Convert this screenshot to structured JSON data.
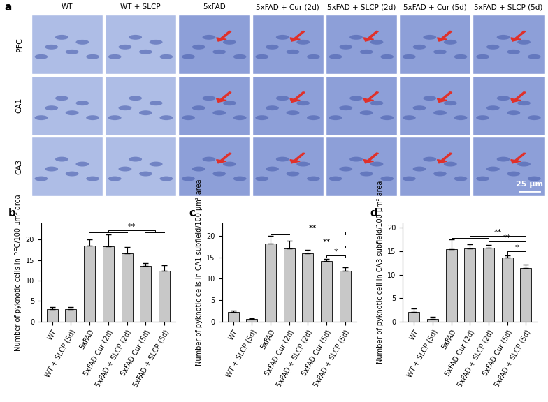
{
  "panel_a": {
    "label": "a",
    "columns": [
      "WT",
      "WT + SLCP",
      "5xFAD",
      "5xFAD + Cur (2d)",
      "5xFAD + SLCP (2d)",
      "5xFAD + Cur (5d)",
      "5xFAD + SLCP (5d)"
    ],
    "rows": [
      "PFC",
      "CA1",
      "CA3"
    ],
    "scale_bar": "25 μm"
  },
  "chart_data": [
    {
      "type": "bar",
      "title": "b",
      "y_label": "Number of pyknotic cells in PFC/100 μm² area",
      "categories": [
        "WT",
        "WT + SLCP (5d)",
        "5xFAD",
        "5xFAD Cur (2d)",
        "5xFAD + SLCP (2d)",
        "5xFAD Cur (5d)",
        "5xFAD + SLCP (5d)"
      ],
      "values": [
        3.0,
        3.0,
        18.5,
        18.3,
        16.7,
        13.5,
        12.3
      ],
      "errors": [
        0.5,
        0.6,
        1.5,
        3.0,
        1.4,
        0.7,
        1.4
      ],
      "color": "#c8c8c8",
      "ylim": [
        0,
        24
      ],
      "yticks": [
        0,
        5,
        10,
        15,
        20
      ],
      "annotations": [
        {
          "text": "**",
          "from": [
            "5xFAD",
            "5xFAD Cur (2d)",
            "5xFAD + SLCP (2d)"
          ],
          "to": [
            "5xFAD Cur (5d)",
            "5xFAD + SLCP (5d)"
          ]
        }
      ]
    },
    {
      "type": "bar",
      "title": "c",
      "y_label": "Number of pyknotic cells in CA1 subfield/100 μm² area",
      "categories": [
        "WT",
        "WT + SLCP (5d)",
        "5xFAD",
        "5xFAD Cur (2d)",
        "5xFAD + SLCP (2d)",
        "5xFAD Cur (5d)",
        "5xFAD + SLCP (5d)"
      ],
      "values": [
        2.2,
        0.6,
        18.3,
        17.0,
        16.0,
        14.1,
        11.8
      ],
      "errors": [
        0.4,
        0.2,
        1.7,
        1.8,
        0.8,
        0.5,
        0.8
      ],
      "color": "#c8c8c8",
      "ylim": [
        0,
        23
      ],
      "yticks": [
        0,
        5,
        10,
        15,
        20
      ],
      "annotations": [
        {
          "text": "**",
          "from": [
            "5xFAD",
            "5xFAD Cur (2d)"
          ],
          "to": [
            "5xFAD + SLCP (5d)"
          ]
        },
        {
          "text": "**",
          "from": [
            "5xFAD + SLCP (2d)"
          ],
          "to": [
            "5xFAD + SLCP (5d)"
          ]
        },
        {
          "text": "*",
          "from": [
            "5xFAD Cur (5d)"
          ],
          "to": [
            "5xFAD + SLCP (5d)"
          ]
        }
      ]
    },
    {
      "type": "bar",
      "title": "d",
      "y_label": "Number of pyknotic cell in CA3 subfield/100 μm² area",
      "categories": [
        "WT",
        "WT + SLCP (5d)",
        "5xFAD",
        "5xFAD Cur (2d)",
        "5xFAD + SLCP (2d)",
        "5xFAD Cur (5d)",
        "5xFAD + SLCP (5d)"
      ],
      "values": [
        2.0,
        0.6,
        15.5,
        15.6,
        15.7,
        13.6,
        11.5
      ],
      "errors": [
        0.8,
        0.4,
        2.0,
        0.9,
        0.6,
        0.5,
        0.6
      ],
      "color": "#c8c8c8",
      "ylim": [
        0,
        21
      ],
      "yticks": [
        0,
        5,
        10,
        15,
        20
      ],
      "annotations": [
        {
          "text": "**",
          "from": [
            "5xFAD",
            "5xFAD Cur (2d)",
            "5xFAD + SLCP (2d)"
          ],
          "to": [
            "5xFAD + SLCP (5d)"
          ]
        },
        {
          "text": "**",
          "from": [
            "5xFAD + SLCP (2d)"
          ],
          "to": [
            "5xFAD + SLCP (5d)"
          ]
        },
        {
          "text": "*",
          "from": [
            "5xFAD Cur (5d)"
          ],
          "to": [
            "5xFAD + SLCP (5d)"
          ]
        }
      ]
    }
  ]
}
